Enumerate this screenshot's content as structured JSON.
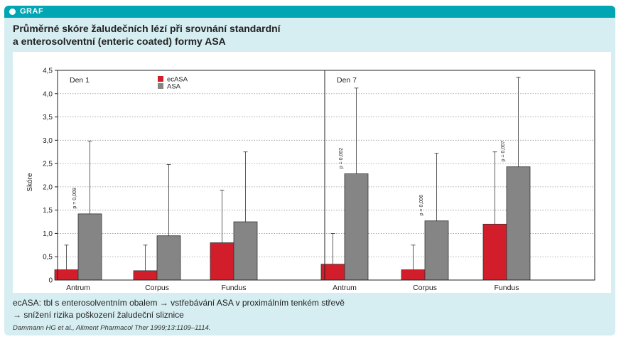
{
  "header": {
    "label": "GRAF"
  },
  "title": {
    "line1": "Průměrné skóre žaludečních lézí při srovnání standardní",
    "line2": "a enterosolventní (enteric coated) formy ASA"
  },
  "colors": {
    "accent": "#00a6b4",
    "panel_bg": "#d6eef1",
    "ecASA": "#d21e2b",
    "ASA": "#858585"
  },
  "chart_data": {
    "type": "bar",
    "ylabel": "Skóre",
    "ylim": [
      0,
      4.5
    ],
    "yticks": [
      "0",
      "0,5",
      "1,0",
      "1,5",
      "2,0",
      "2,5",
      "3,0",
      "3,5",
      "4,0",
      "4,5"
    ],
    "grid": "horizontal dotted",
    "legend": {
      "placement": "top-left of first panel",
      "entries": [
        "ecASA",
        "ASA"
      ]
    },
    "categories": [
      "Antrum",
      "Corpus",
      "Fundus"
    ],
    "panels": [
      {
        "title": "Den 1",
        "series": [
          {
            "name": "ecASA",
            "values": [
              0.22,
              0.2,
              0.8
            ],
            "error_top": [
              0.75,
              0.75,
              1.93
            ]
          },
          {
            "name": "ASA",
            "values": [
              1.42,
              0.95,
              1.25
            ],
            "error_top": [
              2.98,
              2.48,
              2.75
            ]
          }
        ],
        "annotations": [
          {
            "category": "Antrum",
            "text": "p = 0,009"
          }
        ]
      },
      {
        "title": "Den 7",
        "series": [
          {
            "name": "ecASA",
            "values": [
              0.34,
              0.22,
              1.2
            ],
            "error_top": [
              1.0,
              0.75,
              2.75
            ]
          },
          {
            "name": "ASA",
            "values": [
              2.28,
              1.27,
              2.43
            ],
            "error_top": [
              4.12,
              2.72,
              4.35
            ]
          }
        ],
        "annotations": [
          {
            "category": "Antrum",
            "text": "p = 0,002"
          },
          {
            "category": "Corpus",
            "text": "p = 0,006"
          },
          {
            "category": "Fundus",
            "text": "p = 0,007"
          }
        ]
      }
    ]
  },
  "notes": {
    "line1": "ecASA: tbl s enterosolventním obalem → vstřebávání ASA v proximálním tenkém střevě",
    "line2": "→ snížení rizika poškození žaludeční sliznice",
    "citation": "Dammann HG et al., Aliment Pharmacol Ther 1999;13:1109–1114."
  }
}
